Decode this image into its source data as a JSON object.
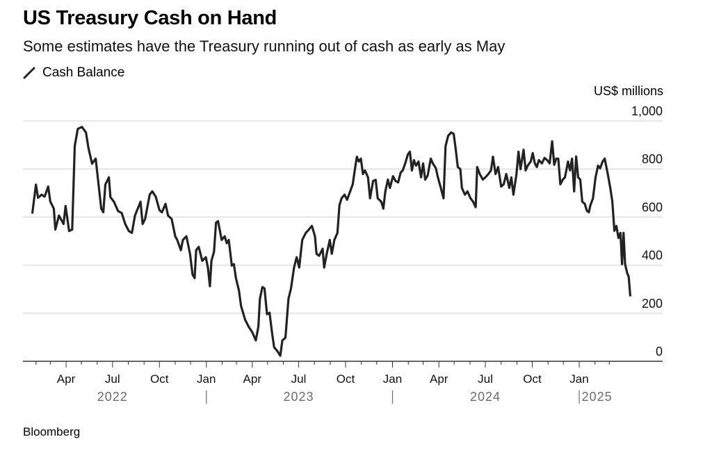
{
  "header": {
    "title": "US Treasury Cash on Hand",
    "subtitle": "Some estimates have the Treasury running out of cash as early as May",
    "legend_icon": "line-swatch-icon",
    "legend_label": "Cash Balance",
    "unit_label": "US$ millions"
  },
  "footer": {
    "source": "Bloomberg"
  },
  "colors": {
    "line": "#222222",
    "grid": "#dddddd",
    "axis": "#333333",
    "year_label": "#6b6b6b"
  },
  "chart_data": {
    "type": "line",
    "title": "US Treasury Cash on Hand",
    "subtitle": "Some estimates have the Treasury running out of cash as early as May",
    "xlabel": "",
    "ylabel": "US$ millions",
    "ylim": [
      0,
      1000
    ],
    "xlim": [
      "2022-01-01",
      "2025-05-01"
    ],
    "y_ticks": [
      {
        "value": 0,
        "label": "0"
      },
      {
        "value": 200,
        "label": "200"
      },
      {
        "value": 400,
        "label": "400"
      },
      {
        "value": 600,
        "label": "600"
      },
      {
        "value": 800,
        "label": "800"
      },
      {
        "value": 1000,
        "label": "1,000"
      }
    ],
    "x_month_labels": [
      {
        "date": "2022-04-01",
        "label": "Apr"
      },
      {
        "date": "2022-07-01",
        "label": "Jul"
      },
      {
        "date": "2022-10-01",
        "label": "Oct"
      },
      {
        "date": "2023-01-01",
        "label": "Jan"
      },
      {
        "date": "2023-04-01",
        "label": "Apr"
      },
      {
        "date": "2023-07-01",
        "label": "Jul"
      },
      {
        "date": "2023-10-01",
        "label": "Oct"
      },
      {
        "date": "2024-01-01",
        "label": "Jan"
      },
      {
        "date": "2024-04-01",
        "label": "Apr"
      },
      {
        "date": "2024-07-01",
        "label": "Jul"
      },
      {
        "date": "2024-10-01",
        "label": "Oct"
      },
      {
        "date": "2025-01-01",
        "label": "Jan"
      }
    ],
    "x_year_labels": [
      {
        "date": "2022-07-01",
        "label": "2022"
      },
      {
        "date": "2023-07-01",
        "label": "2023"
      },
      {
        "date": "2024-07-01",
        "label": "2024"
      },
      {
        "date": "2025-02-05",
        "label": "2025"
      }
    ],
    "year_separators": [
      "2023-01-01",
      "2024-01-01",
      "2025-01-01"
    ],
    "grid": true,
    "legend": "top-left",
    "series": [
      {
        "name": "Cash Balance",
        "points": [
          [
            "2022-01-25",
            618
          ],
          [
            "2022-02-01",
            735
          ],
          [
            "2022-02-05",
            680
          ],
          [
            "2022-02-12",
            693
          ],
          [
            "2022-02-18",
            685
          ],
          [
            "2022-02-25",
            727
          ],
          [
            "2022-03-01",
            665
          ],
          [
            "2022-03-08",
            635
          ],
          [
            "2022-03-11",
            548
          ],
          [
            "2022-03-18",
            606
          ],
          [
            "2022-03-27",
            571
          ],
          [
            "2022-03-31",
            646
          ],
          [
            "2022-04-07",
            542
          ],
          [
            "2022-04-13",
            548
          ],
          [
            "2022-04-18",
            895
          ],
          [
            "2022-04-24",
            967
          ],
          [
            "2022-05-02",
            975
          ],
          [
            "2022-05-10",
            952
          ],
          [
            "2022-05-15",
            886
          ],
          [
            "2022-05-22",
            822
          ],
          [
            "2022-05-29",
            843
          ],
          [
            "2022-06-03",
            750
          ],
          [
            "2022-06-09",
            635
          ],
          [
            "2022-06-13",
            620
          ],
          [
            "2022-06-17",
            735
          ],
          [
            "2022-06-24",
            765
          ],
          [
            "2022-06-27",
            683
          ],
          [
            "2022-07-04",
            663
          ],
          [
            "2022-07-12",
            625
          ],
          [
            "2022-07-19",
            617
          ],
          [
            "2022-07-26",
            571
          ],
          [
            "2022-08-02",
            542
          ],
          [
            "2022-08-08",
            534
          ],
          [
            "2022-08-14",
            606
          ],
          [
            "2022-08-25",
            664
          ],
          [
            "2022-08-29",
            571
          ],
          [
            "2022-09-03",
            592
          ],
          [
            "2022-09-12",
            693
          ],
          [
            "2022-09-17",
            707
          ],
          [
            "2022-09-24",
            684
          ],
          [
            "2022-10-01",
            629
          ],
          [
            "2022-10-06",
            620
          ],
          [
            "2022-10-13",
            655
          ],
          [
            "2022-10-18",
            606
          ],
          [
            "2022-10-25",
            592
          ],
          [
            "2022-11-01",
            520
          ],
          [
            "2022-11-05",
            505
          ],
          [
            "2022-11-12",
            462
          ],
          [
            "2022-11-16",
            505
          ],
          [
            "2022-11-23",
            520
          ],
          [
            "2022-11-30",
            447
          ],
          [
            "2022-12-05",
            361
          ],
          [
            "2022-12-09",
            346
          ],
          [
            "2022-12-12",
            462
          ],
          [
            "2022-12-17",
            476
          ],
          [
            "2022-12-24",
            418
          ],
          [
            "2022-12-31",
            433
          ],
          [
            "2023-01-04",
            390
          ],
          [
            "2023-01-08",
            312
          ],
          [
            "2023-01-11",
            418
          ],
          [
            "2023-01-16",
            456
          ],
          [
            "2023-01-20",
            577
          ],
          [
            "2023-01-24",
            583
          ],
          [
            "2023-01-31",
            505
          ],
          [
            "2023-02-06",
            520
          ],
          [
            "2023-02-10",
            491
          ],
          [
            "2023-02-14",
            505
          ],
          [
            "2023-02-20",
            398
          ],
          [
            "2023-02-24",
            404
          ],
          [
            "2023-02-28",
            346
          ],
          [
            "2023-03-06",
            294
          ],
          [
            "2023-03-10",
            231
          ],
          [
            "2023-03-18",
            173
          ],
          [
            "2023-03-25",
            144
          ],
          [
            "2023-04-01",
            121
          ],
          [
            "2023-04-08",
            87
          ],
          [
            "2023-04-13",
            144
          ],
          [
            "2023-04-16",
            260
          ],
          [
            "2023-04-21",
            309
          ],
          [
            "2023-04-25",
            303
          ],
          [
            "2023-04-30",
            196
          ],
          [
            "2023-05-05",
            202
          ],
          [
            "2023-05-10",
            115
          ],
          [
            "2023-05-14",
            58
          ],
          [
            "2023-05-20",
            43
          ],
          [
            "2023-05-26",
            23
          ],
          [
            "2023-05-30",
            87
          ],
          [
            "2023-06-05",
            98
          ],
          [
            "2023-06-11",
            260
          ],
          [
            "2023-06-16",
            303
          ],
          [
            "2023-06-22",
            390
          ],
          [
            "2023-06-27",
            433
          ],
          [
            "2023-06-29",
            418
          ],
          [
            "2023-07-02",
            390
          ],
          [
            "2023-07-08",
            505
          ],
          [
            "2023-07-15",
            534
          ],
          [
            "2023-07-21",
            548
          ],
          [
            "2023-07-27",
            563
          ],
          [
            "2023-08-02",
            520
          ],
          [
            "2023-08-05",
            447
          ],
          [
            "2023-08-10",
            439
          ],
          [
            "2023-08-17",
            468
          ],
          [
            "2023-08-20",
            390
          ],
          [
            "2023-08-25",
            447
          ],
          [
            "2023-08-31",
            505
          ],
          [
            "2023-09-04",
            447
          ],
          [
            "2023-09-09",
            505
          ],
          [
            "2023-09-15",
            534
          ],
          [
            "2023-09-19",
            649
          ],
          [
            "2023-09-23",
            678
          ],
          [
            "2023-09-29",
            693
          ],
          [
            "2023-10-04",
            672
          ],
          [
            "2023-10-10",
            707
          ],
          [
            "2023-10-15",
            736
          ],
          [
            "2023-10-19",
            794
          ],
          [
            "2023-10-23",
            851
          ],
          [
            "2023-10-27",
            831
          ],
          [
            "2023-10-31",
            843
          ],
          [
            "2023-11-04",
            779
          ],
          [
            "2023-11-08",
            794
          ],
          [
            "2023-11-14",
            765
          ],
          [
            "2023-11-18",
            678
          ],
          [
            "2023-11-24",
            750
          ],
          [
            "2023-11-29",
            755
          ],
          [
            "2023-12-03",
            678
          ],
          [
            "2023-12-10",
            664
          ],
          [
            "2023-12-14",
            635
          ],
          [
            "2023-12-18",
            707
          ],
          [
            "2023-12-23",
            756
          ],
          [
            "2023-12-27",
            721
          ],
          [
            "2024-01-02",
            770
          ],
          [
            "2024-01-07",
            750
          ],
          [
            "2024-01-12",
            744
          ],
          [
            "2024-01-17",
            785
          ],
          [
            "2024-01-21",
            794
          ],
          [
            "2024-01-26",
            823
          ],
          [
            "2024-01-31",
            860
          ],
          [
            "2024-02-04",
            872
          ],
          [
            "2024-02-08",
            794
          ],
          [
            "2024-02-12",
            837
          ],
          [
            "2024-02-16",
            814
          ],
          [
            "2024-02-21",
            831
          ],
          [
            "2024-02-26",
            765
          ],
          [
            "2024-03-01",
            823
          ],
          [
            "2024-03-05",
            756
          ],
          [
            "2024-03-10",
            773
          ],
          [
            "2024-03-16",
            843
          ],
          [
            "2024-03-20",
            823
          ],
          [
            "2024-03-26",
            803
          ],
          [
            "2024-03-30",
            765
          ],
          [
            "2024-04-04",
            727
          ],
          [
            "2024-04-10",
            678
          ],
          [
            "2024-04-14",
            895
          ],
          [
            "2024-04-19",
            938
          ],
          [
            "2024-04-25",
            952
          ],
          [
            "2024-04-30",
            946
          ],
          [
            "2024-05-04",
            880
          ],
          [
            "2024-05-08",
            808
          ],
          [
            "2024-05-13",
            799
          ],
          [
            "2024-05-16",
            721
          ],
          [
            "2024-05-22",
            693
          ],
          [
            "2024-05-27",
            707
          ],
          [
            "2024-06-02",
            678
          ],
          [
            "2024-06-07",
            664
          ],
          [
            "2024-06-12",
            641
          ],
          [
            "2024-06-15",
            808
          ],
          [
            "2024-06-20",
            779
          ],
          [
            "2024-06-26",
            756
          ],
          [
            "2024-07-01",
            765
          ],
          [
            "2024-07-07",
            779
          ],
          [
            "2024-07-12",
            794
          ],
          [
            "2024-07-16",
            851
          ],
          [
            "2024-07-21",
            779
          ],
          [
            "2024-07-26",
            808
          ],
          [
            "2024-08-01",
            727
          ],
          [
            "2024-08-06",
            736
          ],
          [
            "2024-08-11",
            779
          ],
          [
            "2024-08-17",
            721
          ],
          [
            "2024-08-21",
            765
          ],
          [
            "2024-08-25",
            693
          ],
          [
            "2024-08-31",
            779
          ],
          [
            "2024-09-04",
            872
          ],
          [
            "2024-09-08",
            799
          ],
          [
            "2024-09-14",
            880
          ],
          [
            "2024-09-18",
            794
          ],
          [
            "2024-09-22",
            814
          ],
          [
            "2024-09-28",
            831
          ],
          [
            "2024-10-02",
            866
          ],
          [
            "2024-10-06",
            823
          ],
          [
            "2024-10-10",
            808
          ],
          [
            "2024-10-14",
            837
          ],
          [
            "2024-10-20",
            823
          ],
          [
            "2024-10-25",
            846
          ],
          [
            "2024-10-30",
            837
          ],
          [
            "2024-11-04",
            823
          ],
          [
            "2024-11-09",
            915
          ],
          [
            "2024-11-13",
            817
          ],
          [
            "2024-11-17",
            843
          ],
          [
            "2024-11-21",
            843
          ],
          [
            "2024-11-25",
            736
          ],
          [
            "2024-11-30",
            756
          ],
          [
            "2024-12-04",
            765
          ],
          [
            "2024-12-10",
            831
          ],
          [
            "2024-12-14",
            794
          ],
          [
            "2024-12-18",
            843
          ],
          [
            "2024-12-22",
            707
          ],
          [
            "2024-12-26",
            852
          ],
          [
            "2024-12-30",
            765
          ],
          [
            "2025-01-03",
            756
          ],
          [
            "2025-01-07",
            664
          ],
          [
            "2025-01-12",
            655
          ],
          [
            "2025-01-16",
            626
          ],
          [
            "2025-01-20",
            620
          ],
          [
            "2025-01-23",
            649
          ],
          [
            "2025-01-28",
            678
          ],
          [
            "2025-02-02",
            765
          ],
          [
            "2025-02-07",
            814
          ],
          [
            "2025-02-11",
            803
          ],
          [
            "2025-02-16",
            831
          ],
          [
            "2025-02-20",
            843
          ],
          [
            "2025-02-26",
            779
          ],
          [
            "2025-03-03",
            721
          ],
          [
            "2025-03-07",
            664
          ],
          [
            "2025-03-11",
            543
          ],
          [
            "2025-03-15",
            563
          ],
          [
            "2025-03-19",
            513
          ],
          [
            "2025-03-23",
            534
          ],
          [
            "2025-03-26",
            404
          ],
          [
            "2025-03-29",
            534
          ],
          [
            "2025-04-01",
            404
          ],
          [
            "2025-04-05",
            367
          ],
          [
            "2025-04-08",
            352
          ],
          [
            "2025-04-11",
            274
          ]
        ]
      }
    ]
  }
}
